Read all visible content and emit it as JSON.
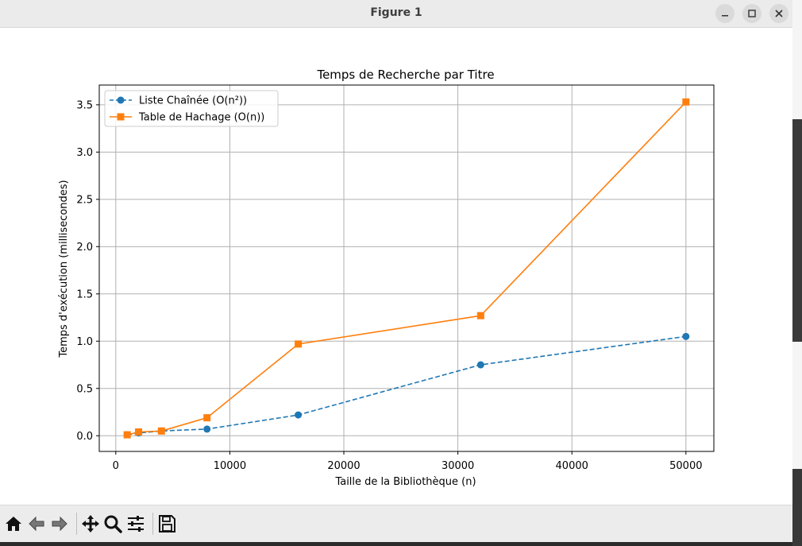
{
  "window": {
    "title": "Figure 1",
    "controls": {
      "minimize": "–",
      "maximize": "□",
      "close": "✕"
    }
  },
  "toolbar": {
    "buttons": [
      "home-icon",
      "back-icon",
      "forward-icon",
      "pan-icon",
      "zoom-icon",
      "configure-subplots-icon",
      "save-icon"
    ]
  },
  "chart_data": {
    "type": "line",
    "title": "Temps de Recherche par Titre",
    "xlabel": "Taille de la Bibliothèque (n)",
    "ylabel": "Temps d'exécution (millisecondes)",
    "xlim": [
      -1450,
      52450
    ],
    "ylim": [
      -0.166,
      3.709
    ],
    "x_ticks": [
      0,
      10000,
      20000,
      30000,
      40000,
      50000
    ],
    "y_ticks": [
      0.0,
      0.5,
      1.0,
      1.5,
      2.0,
      2.5,
      3.0,
      3.5
    ],
    "y_tick_labels": [
      "0.0",
      "0.5",
      "1.0",
      "1.5",
      "2.0",
      "2.5",
      "3.0",
      "3.5"
    ],
    "grid": true,
    "legend_position": "upper-left",
    "x": [
      1000,
      2000,
      4000,
      8000,
      16000,
      32000,
      50000
    ],
    "series": [
      {
        "name": "Liste Chaînée (O(n²))",
        "values": [
          0.01,
          0.03,
          0.05,
          0.07,
          0.22,
          0.75,
          1.05
        ],
        "color": "#1f77b4",
        "linestyle": "dashed",
        "marker": "circle"
      },
      {
        "name": "Table de Hachage (O(n))",
        "values": [
          0.01,
          0.04,
          0.05,
          0.19,
          0.97,
          1.27,
          3.53
        ],
        "color": "#ff7f0e",
        "linestyle": "solid",
        "marker": "square"
      }
    ]
  }
}
